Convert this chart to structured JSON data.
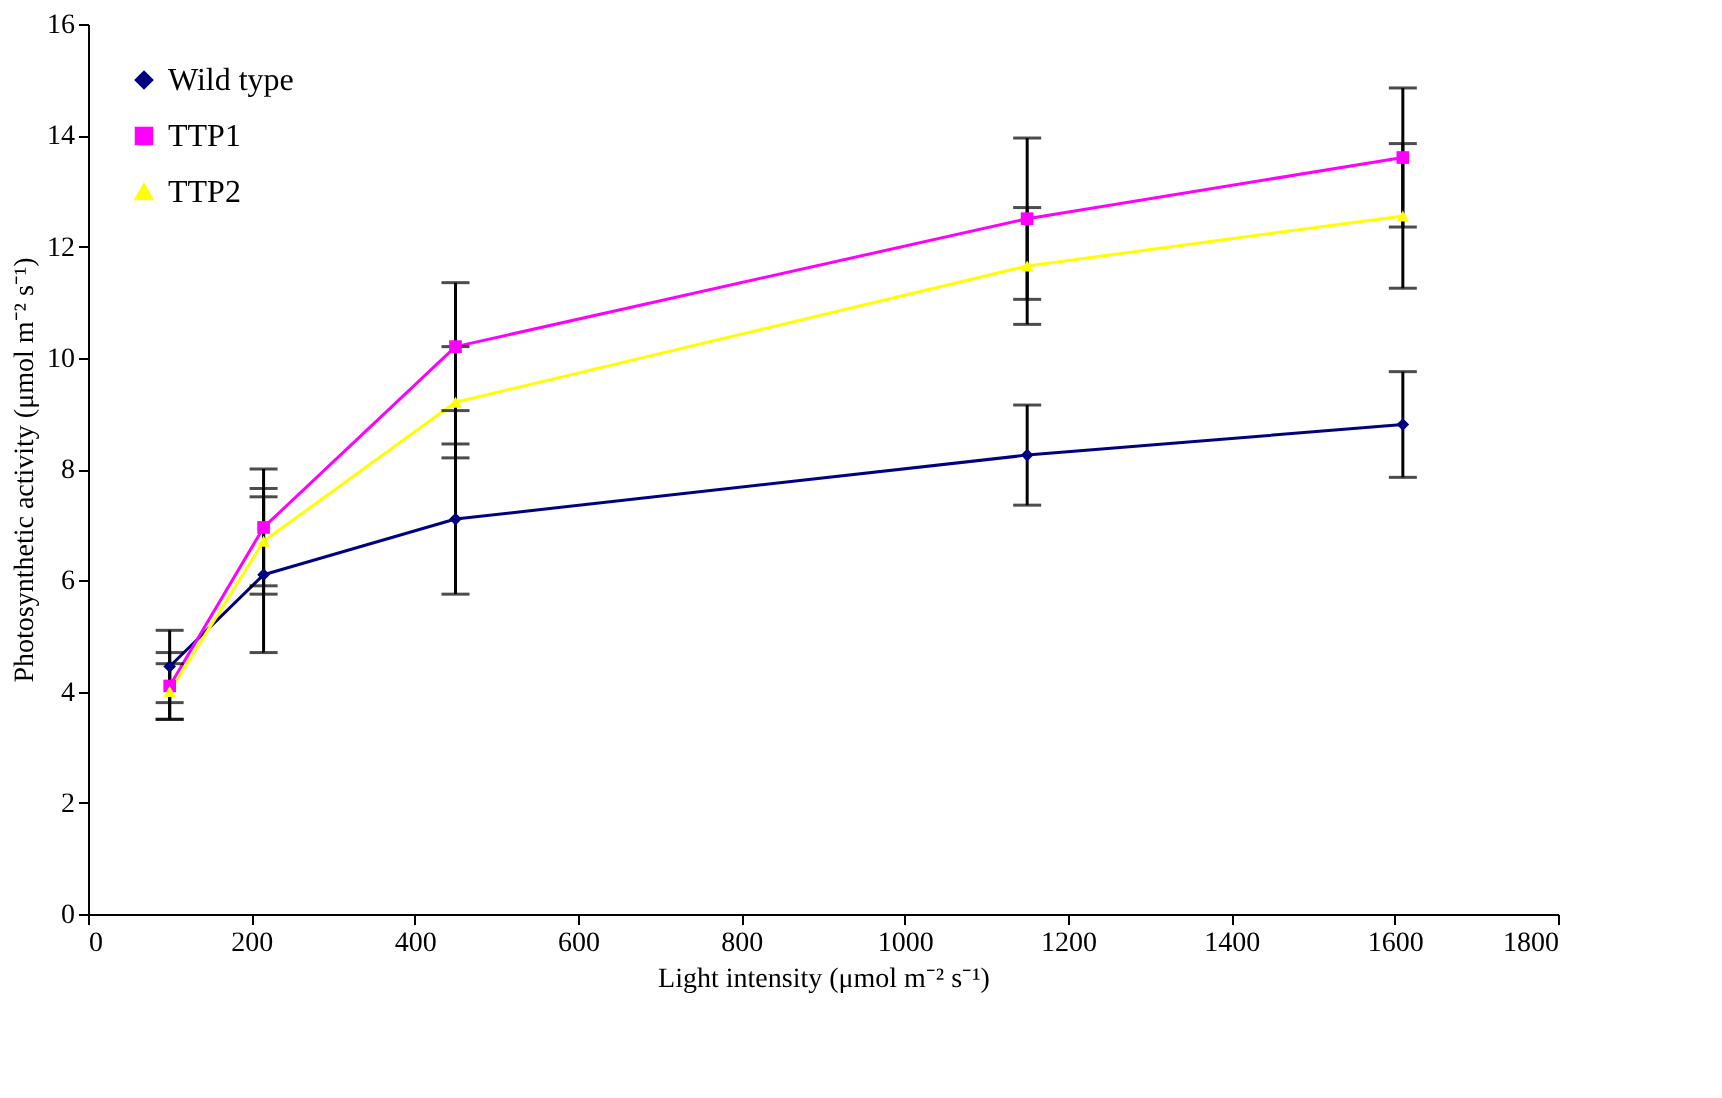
{
  "chart_data": {
    "type": "line",
    "xlabel": "Light intensity (μmol m⁻² s⁻¹)",
    "ylabel": "Photosynthetic activity  (μmol m⁻² s⁻¹)",
    "x": [
      100,
      215,
      450,
      1150,
      1610
    ],
    "series": [
      {
        "name": "Wild type",
        "color": "#000080",
        "marker": "diamond",
        "values": [
          4.45,
          6.1,
          7.1,
          8.25,
          8.8
        ],
        "errors": [
          0.65,
          1.4,
          1.35,
          0.9,
          0.95
        ]
      },
      {
        "name": "TTP1",
        "color": "#ff00ff",
        "marker": "square",
        "values": [
          4.1,
          6.95,
          10.2,
          12.5,
          13.6
        ],
        "errors": [
          0.6,
          1.05,
          1.15,
          1.45,
          1.25
        ]
      },
      {
        "name": "TTP2",
        "color": "#ffff00",
        "marker": "triangle",
        "values": [
          4.0,
          6.7,
          9.2,
          11.65,
          12.55
        ],
        "errors": [
          0.5,
          0.95,
          1.0,
          1.05,
          1.3
        ]
      }
    ],
    "xlim": [
      0,
      1800
    ],
    "xticks": [
      0,
      200,
      400,
      600,
      800,
      1000,
      1200,
      1400,
      1600,
      1800
    ],
    "ylim": [
      0,
      16
    ],
    "yticks": [
      0,
      2,
      4,
      6,
      8,
      10,
      12,
      14,
      16
    ],
    "grid": false,
    "legend": "top left",
    "line_style": "solid"
  }
}
